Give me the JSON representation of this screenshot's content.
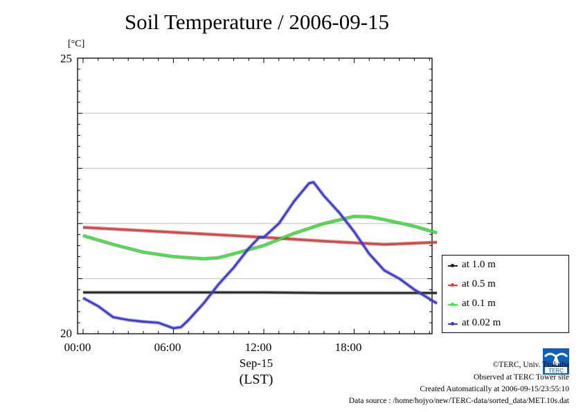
{
  "chart_data": {
    "type": "line",
    "title": "Soil Temperature / 2006-09-15",
    "ylabel": "[°C]",
    "ylim": [
      20,
      25
    ],
    "yticks": [
      {
        "value": 25,
        "label": "25"
      },
      {
        "value": 20,
        "label": "20"
      }
    ],
    "ygrid": [
      21,
      22,
      23,
      24
    ],
    "xlim": [
      0,
      23.5
    ],
    "xticks": [
      {
        "value": 0,
        "label": "00:00"
      },
      {
        "value": 6,
        "label": "06:00"
      },
      {
        "value": 12,
        "label": "12:00"
      },
      {
        "value": 18,
        "label": "18:00"
      }
    ],
    "xlabel": "Sep-15",
    "xunit": "(LST)",
    "legend_position": "right",
    "series": [
      {
        "name": "at 1.0 m",
        "color": "#202020",
        "x": [
          0,
          4,
          8,
          12,
          16,
          20,
          23.5
        ],
        "y": [
          20.75,
          20.75,
          20.75,
          20.75,
          20.74,
          20.74,
          20.74
        ]
      },
      {
        "name": "at 0.5 m",
        "color": "#ff3030",
        "x": [
          0,
          4,
          8,
          12,
          16,
          20,
          23.5
        ],
        "y": [
          21.93,
          21.87,
          21.81,
          21.75,
          21.68,
          21.62,
          21.66
        ]
      },
      {
        "name": "at 0.1 m",
        "color": "#20ff20",
        "x": [
          0,
          2,
          4,
          6,
          8,
          9,
          10,
          12,
          14,
          16,
          18,
          19,
          20,
          22,
          23.5
        ],
        "y": [
          21.78,
          21.62,
          21.48,
          21.4,
          21.36,
          21.38,
          21.45,
          21.6,
          21.82,
          22.0,
          22.13,
          22.12,
          22.07,
          21.95,
          21.83
        ]
      },
      {
        "name": "at 0.02 m",
        "color": "#3333ff",
        "x": [
          0,
          1,
          2,
          3,
          4,
          5,
          6,
          6.5,
          7,
          8,
          9,
          10,
          11,
          11.7,
          12,
          13,
          14,
          15,
          15.3,
          16,
          17,
          18,
          19,
          20,
          21,
          22,
          23.5
        ],
        "y": [
          20.65,
          20.5,
          20.3,
          20.25,
          20.22,
          20.2,
          20.1,
          20.12,
          20.25,
          20.55,
          20.9,
          21.2,
          21.55,
          21.75,
          21.75,
          22.0,
          22.4,
          22.73,
          22.75,
          22.5,
          22.2,
          21.85,
          21.45,
          21.15,
          21.0,
          20.8,
          20.55
        ]
      }
    ]
  },
  "credits": {
    "copyright": "©TERC, Univ. Tsukuba",
    "observed": "Observed at TERC Tower site",
    "created": "Created Automatically at 2006-09-15/23:55:10",
    "source": "Data source : /home/hojyo/new/TERC-data/sorted_data/MET.10s.dat"
  },
  "logo": {
    "name": "terc-logo-icon",
    "text": "TERC"
  }
}
